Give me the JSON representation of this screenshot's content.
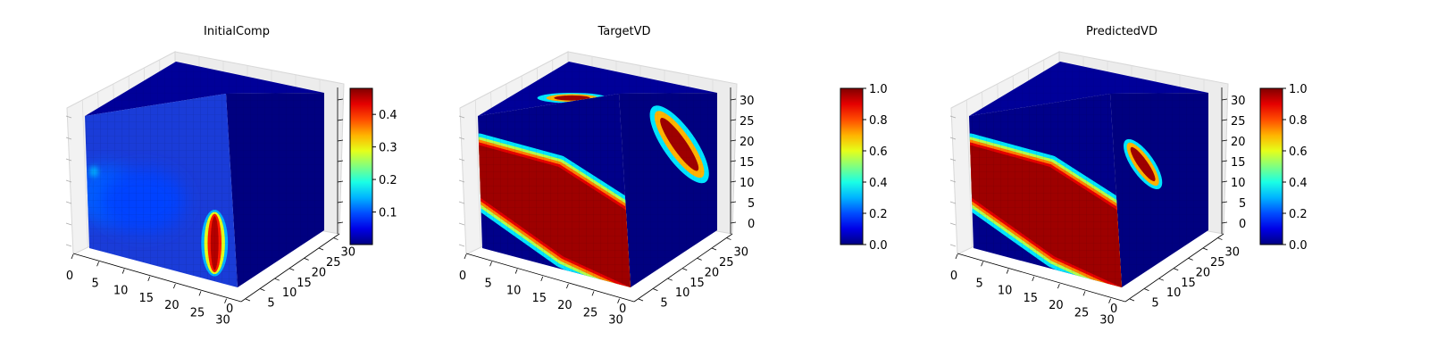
{
  "chart_data": [
    {
      "type": "heatmap",
      "subtype": "3d-voxel-cube",
      "title": "InitialComp",
      "xlabel": "",
      "ylabel": "",
      "zlabel": "",
      "x_ticks": [
        "0",
        "5",
        "10",
        "15",
        "20",
        "25",
        "30"
      ],
      "y_ticks": [
        "0",
        "5",
        "10",
        "15",
        "20",
        "25",
        "30"
      ],
      "z_ticks": [],
      "xlim": [
        0,
        32
      ],
      "ylim": [
        0,
        32
      ],
      "zlim": [
        0,
        32
      ],
      "colormap": "jet",
      "colorbar": {
        "min": 0.0,
        "max": 0.48,
        "ticks": [
          "0.1",
          "0.2",
          "0.3",
          "0.4"
        ],
        "tick_values": [
          0.1,
          0.2,
          0.3,
          0.4
        ]
      },
      "front_face_features": [
        {
          "kind": "blob",
          "cx": 0.12,
          "cy": 0.58,
          "rx": 0.2,
          "ry": 0.22,
          "value": 0.13
        },
        {
          "kind": "blob",
          "cx": 0.38,
          "cy": 0.6,
          "rx": 0.3,
          "ry": 0.24,
          "value": 0.1
        },
        {
          "kind": "dot",
          "cx": 0.05,
          "cy": 0.42,
          "rx": 0.03,
          "ry": 0.04,
          "value": 0.22
        },
        {
          "kind": "band",
          "cx": 0.86,
          "cy": 0.79,
          "rx": 0.07,
          "ry": 0.24,
          "value": 0.45
        }
      ],
      "top_face_features": [],
      "side_face_features": [],
      "grid": true
    },
    {
      "type": "heatmap",
      "subtype": "3d-voxel-cube",
      "title": "TargetVD",
      "xlabel": "",
      "ylabel": "",
      "zlabel": "",
      "x_ticks": [
        "0",
        "5",
        "10",
        "15",
        "20",
        "25",
        "30"
      ],
      "y_ticks": [
        "0",
        "5",
        "10",
        "15",
        "20",
        "25",
        "30"
      ],
      "z_ticks": [
        "0",
        "5",
        "10",
        "15",
        "20",
        "25",
        "30"
      ],
      "xlim": [
        0,
        32
      ],
      "ylim": [
        0,
        32
      ],
      "zlim": [
        0,
        32
      ],
      "colormap": "jet",
      "colorbar": {
        "min": 0.0,
        "max": 1.0,
        "ticks": [
          "0.0",
          "0.2",
          "0.4",
          "0.6",
          "0.8",
          "1.0"
        ],
        "tick_values": [
          0,
          0.2,
          0.4,
          0.6,
          0.8,
          1.0
        ],
        "detached": true
      },
      "front_face_features": [
        {
          "kind": "diagonal-band",
          "value": 1.0
        }
      ],
      "top_face_features": [
        {
          "kind": "ellipse",
          "cx": 0.5,
          "cy": 0.75,
          "rx": 0.16,
          "ry": 0.12,
          "value": 1.0
        }
      ],
      "side_face_features": [
        {
          "kind": "ellipse",
          "cx": 0.6,
          "cy": 0.32,
          "rx": 0.13,
          "ry": 0.28,
          "value": 1.0
        }
      ],
      "grid": true
    },
    {
      "type": "heatmap",
      "subtype": "3d-voxel-cube",
      "title": "PredictedVD",
      "xlabel": "",
      "ylabel": "",
      "zlabel": "",
      "x_ticks": [
        "0",
        "5",
        "10",
        "15",
        "20",
        "25",
        "30"
      ],
      "y_ticks": [
        "0",
        "5",
        "10",
        "15",
        "20",
        "25",
        "30"
      ],
      "z_ticks": [
        "0",
        "5",
        "10",
        "15",
        "20",
        "25",
        "30"
      ],
      "xlim": [
        0,
        32
      ],
      "ylim": [
        0,
        32
      ],
      "zlim": [
        0,
        32
      ],
      "colormap": "jet",
      "colorbar": {
        "min": 0.0,
        "max": 1.0,
        "ticks": [
          "0.0",
          "0.2",
          "0.4",
          "0.6",
          "0.8",
          "1.0"
        ],
        "tick_values": [
          0,
          0.2,
          0.4,
          0.6,
          0.8,
          1.0
        ]
      },
      "front_face_features": [
        {
          "kind": "diagonal-band",
          "value": 1.0
        }
      ],
      "top_face_features": [],
      "side_face_features": [
        {
          "kind": "ellipse",
          "cx": 0.3,
          "cy": 0.4,
          "rx": 0.09,
          "ry": 0.18,
          "value": 1.0
        }
      ],
      "grid": true
    }
  ]
}
